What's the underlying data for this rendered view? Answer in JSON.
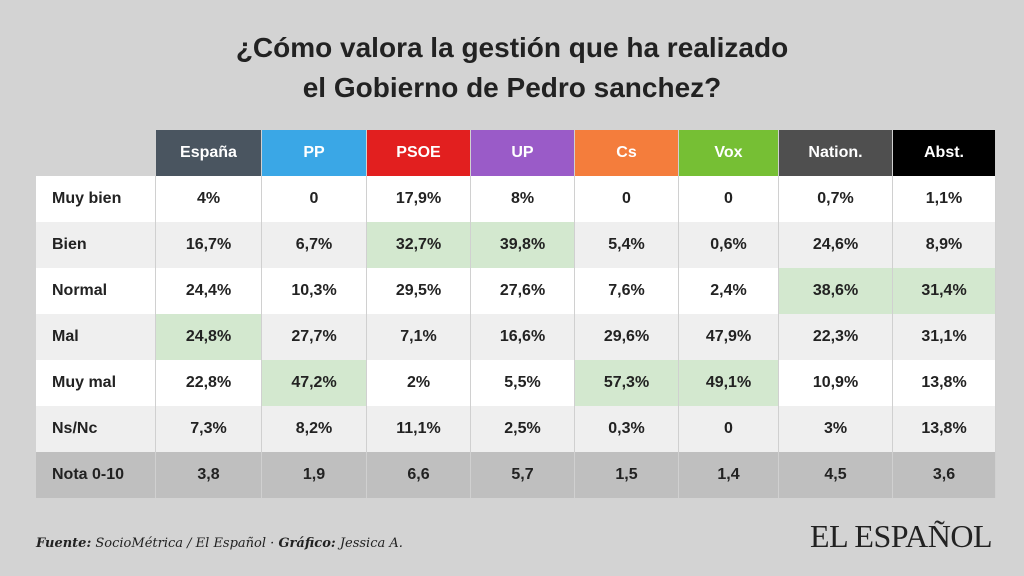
{
  "title": {
    "line1": "¿Cómo valora la gestión que ha realizado",
    "line2": "el Gobierno de Pedro sanchez?"
  },
  "colors": {
    "España": "#4a5560",
    "PP": "#3aa7e6",
    "PSOE": "#e21f1f",
    "UP": "#9a5bc8",
    "Cs": "#f47d3c",
    "Vox": "#76bf34",
    "Nation.": "#4f4f4f",
    "Abst.": "#000000",
    "highlight": "#d3e8cf"
  },
  "chart_data": {
    "type": "table",
    "title": "¿Cómo valora la gestión que ha realizado el Gobierno de Pedro sanchez?",
    "columns": [
      "España",
      "PP",
      "PSOE",
      "UP",
      "Cs",
      "Vox",
      "Nation.",
      "Abst."
    ],
    "rows": [
      {
        "label": "Muy bien",
        "values": [
          "4%",
          "0",
          "17,9%",
          "8%",
          "0",
          "0",
          "0,7%",
          "1,1%"
        ],
        "highlight": []
      },
      {
        "label": "Bien",
        "values": [
          "16,7%",
          "6,7%",
          "32,7%",
          "39,8%",
          "5,4%",
          "0,6%",
          "24,6%",
          "8,9%"
        ],
        "highlight": [
          2,
          3
        ]
      },
      {
        "label": "Normal",
        "values": [
          "24,4%",
          "10,3%",
          "29,5%",
          "27,6%",
          "7,6%",
          "2,4%",
          "38,6%",
          "31,4%"
        ],
        "highlight": [
          6,
          7
        ]
      },
      {
        "label": "Mal",
        "values": [
          "24,8%",
          "27,7%",
          "7,1%",
          "16,6%",
          "29,6%",
          "47,9%",
          "22,3%",
          "31,1%"
        ],
        "highlight": [
          0
        ]
      },
      {
        "label": "Muy mal",
        "values": [
          "22,8%",
          "47,2%",
          "2%",
          "5,5%",
          "57,3%",
          "49,1%",
          "10,9%",
          "13,8%"
        ],
        "highlight": [
          1,
          4,
          5
        ]
      },
      {
        "label": "Ns/Nc",
        "values": [
          "7,3%",
          "8,2%",
          "11,1%",
          "2,5%",
          "0,3%",
          "0",
          "3%",
          "13,8%"
        ],
        "highlight": []
      },
      {
        "label": "Nota 0-10",
        "values": [
          "3,8",
          "1,9",
          "6,6",
          "5,7",
          "1,5",
          "1,4",
          "4,5",
          "3,6"
        ],
        "highlight": [],
        "total": true
      }
    ]
  },
  "footer": {
    "source_label": "Fuente:",
    "source_text": "SocioMétrica / El Español ·",
    "graphic_label": "Gráfico:",
    "graphic_text": "Jessica A."
  },
  "logo": "EL ESPAÑOL"
}
